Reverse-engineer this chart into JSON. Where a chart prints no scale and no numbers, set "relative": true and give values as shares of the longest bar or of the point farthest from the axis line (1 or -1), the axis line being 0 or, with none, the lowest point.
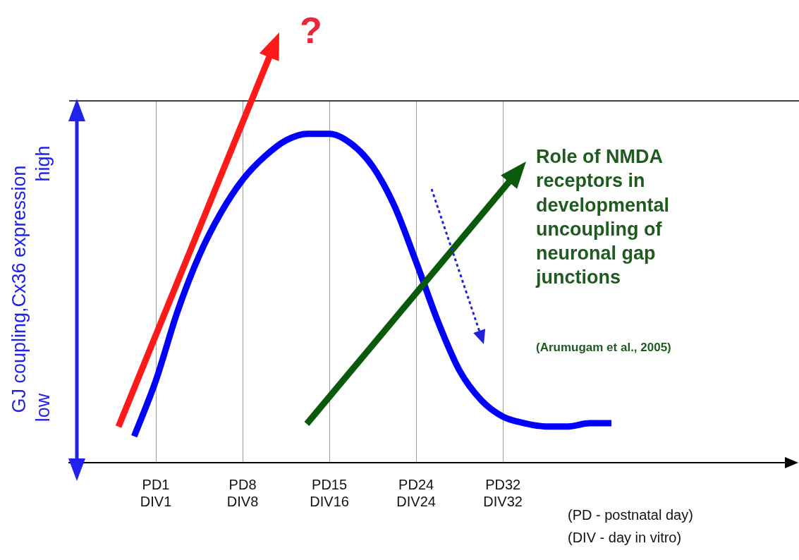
{
  "chart_data": {
    "type": "line",
    "relative": true,
    "ylabel": "GJ coupling,Cx36 expression",
    "categories": [
      null,
      null,
      null,
      null,
      "PD1\nDIV1",
      null,
      null,
      null,
      "PD8\nDIV8",
      null,
      null,
      null,
      "PD15\nDIV16",
      null,
      null,
      null,
      "PD24\nDIV24",
      null,
      null,
      null,
      "PD32\nDIV32",
      null,
      null,
      null,
      null,
      null,
      null,
      null,
      null,
      null,
      null,
      null,
      null,
      null
    ],
    "series": [
      {
        "color": "#0000ff",
        "values": [
          null,
          null,
          null,
          0.08,
          0.25,
          0.46,
          0.63,
          0.76,
          0.86,
          0.93,
          0.98,
          1,
          1,
          0.97,
          0.9,
          0.78,
          0.61,
          0.43,
          0.28,
          0.19,
          0.14,
          0.12,
          0.11,
          0.11,
          0.12,
          0.12,
          null,
          null,
          null,
          null,
          null,
          null,
          null,
          null
        ]
      }
    ],
    "annotations": [
      "low",
      "high",
      "?",
      "Role of NMDA receptors in developmental uncoupling of neuronal gap junctions",
      "(Arumugam et al., 2005)",
      "(PD - postnatal day)\n(DIV - day in vitro)"
    ],
    "grid": "x",
    "legend": false,
    "marker": "none",
    "line_style": "solid"
  }
}
